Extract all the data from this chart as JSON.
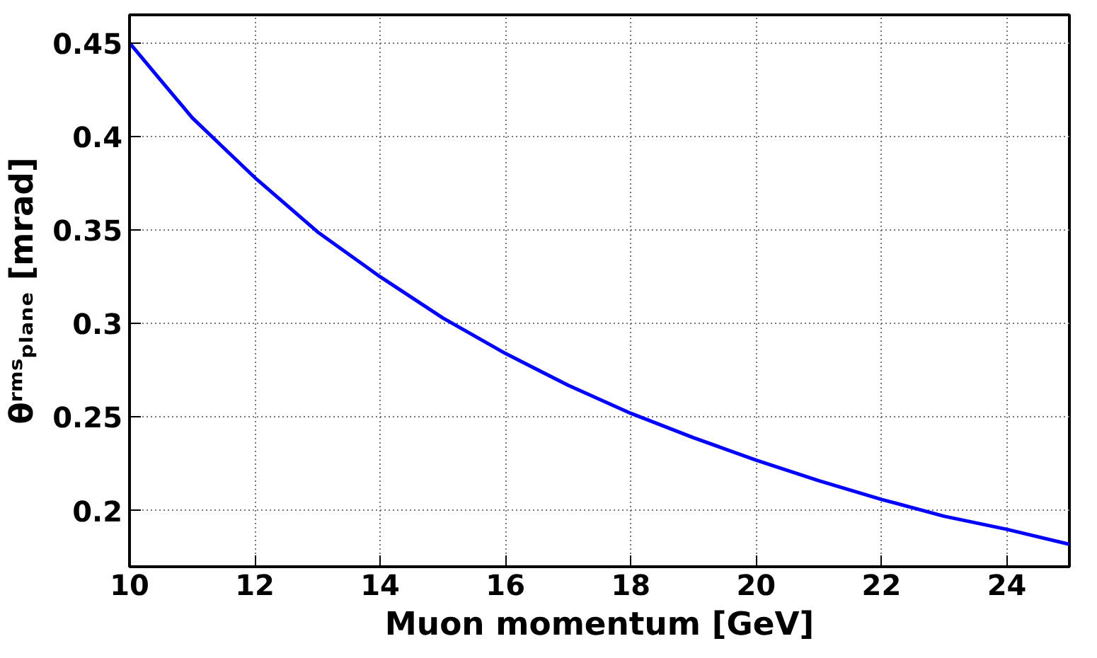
{
  "chart_data": {
    "type": "line",
    "xlabel": "Muon momentum [GeV]",
    "ylabel": "θʳᵐˢₚₗₐₙₑ [mrad]",
    "x": [
      10,
      10.5,
      11,
      11.5,
      12,
      13,
      14,
      15,
      16,
      17,
      18,
      19,
      20,
      21,
      22,
      23,
      24,
      25
    ],
    "series": [
      {
        "color": "#0000ff",
        "values": [
          0.45,
          0.43,
          0.41,
          0.394,
          0.378,
          0.349,
          0.325,
          0.303,
          0.284,
          0.267,
          0.252,
          0.239,
          0.227,
          0.216,
          0.206,
          0.197,
          0.19,
          0.182
        ]
      }
    ],
    "xlim": [
      10,
      25
    ],
    "ylim": [
      0.17,
      0.465
    ],
    "xticks": [
      10,
      12,
      14,
      16,
      18,
      20,
      22,
      24
    ],
    "yticks": [
      0.2,
      0.25,
      0.3,
      0.35,
      0.4,
      0.45
    ],
    "grid": true,
    "line_style": "solid",
    "marker": "none"
  }
}
